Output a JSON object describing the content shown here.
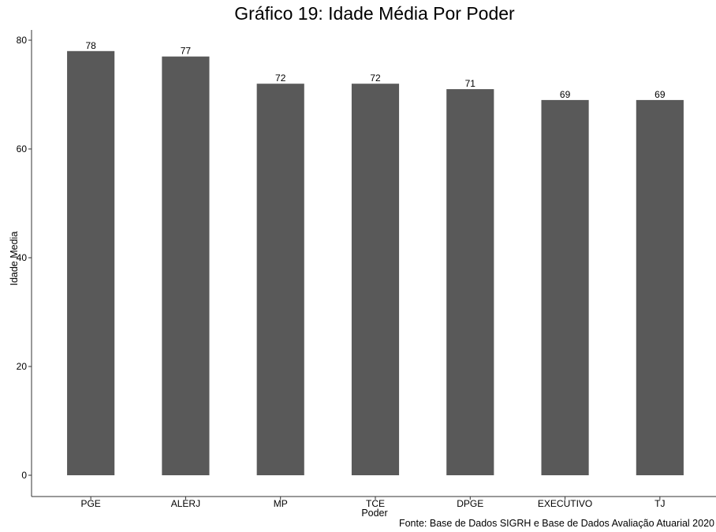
{
  "chart_data": {
    "type": "bar",
    "title": "Gráfico 19: Idade Média Por Poder",
    "xlabel": "Poder",
    "ylabel": "Idade Media",
    "categories": [
      "PGE",
      "ALERJ",
      "MP",
      "TCE",
      "DPGE",
      "EXECUTIVO",
      "TJ"
    ],
    "values": [
      78,
      77,
      72,
      72,
      71,
      69,
      69
    ],
    "data_labels": [
      "78",
      "77",
      "72",
      "72",
      "71",
      "69",
      "69"
    ],
    "ylim": [
      0,
      80
    ],
    "y_ticks": [
      0,
      20,
      40,
      60,
      80
    ],
    "grid": false,
    "legend": "none",
    "caption": "Fonte: Base de Dados SIGRH e Base de Dados Avaliação Atuarial 2020",
    "colors": {
      "bar": "#595959",
      "axis": "#333333",
      "text": "#000000",
      "background": "#ffffff"
    }
  }
}
